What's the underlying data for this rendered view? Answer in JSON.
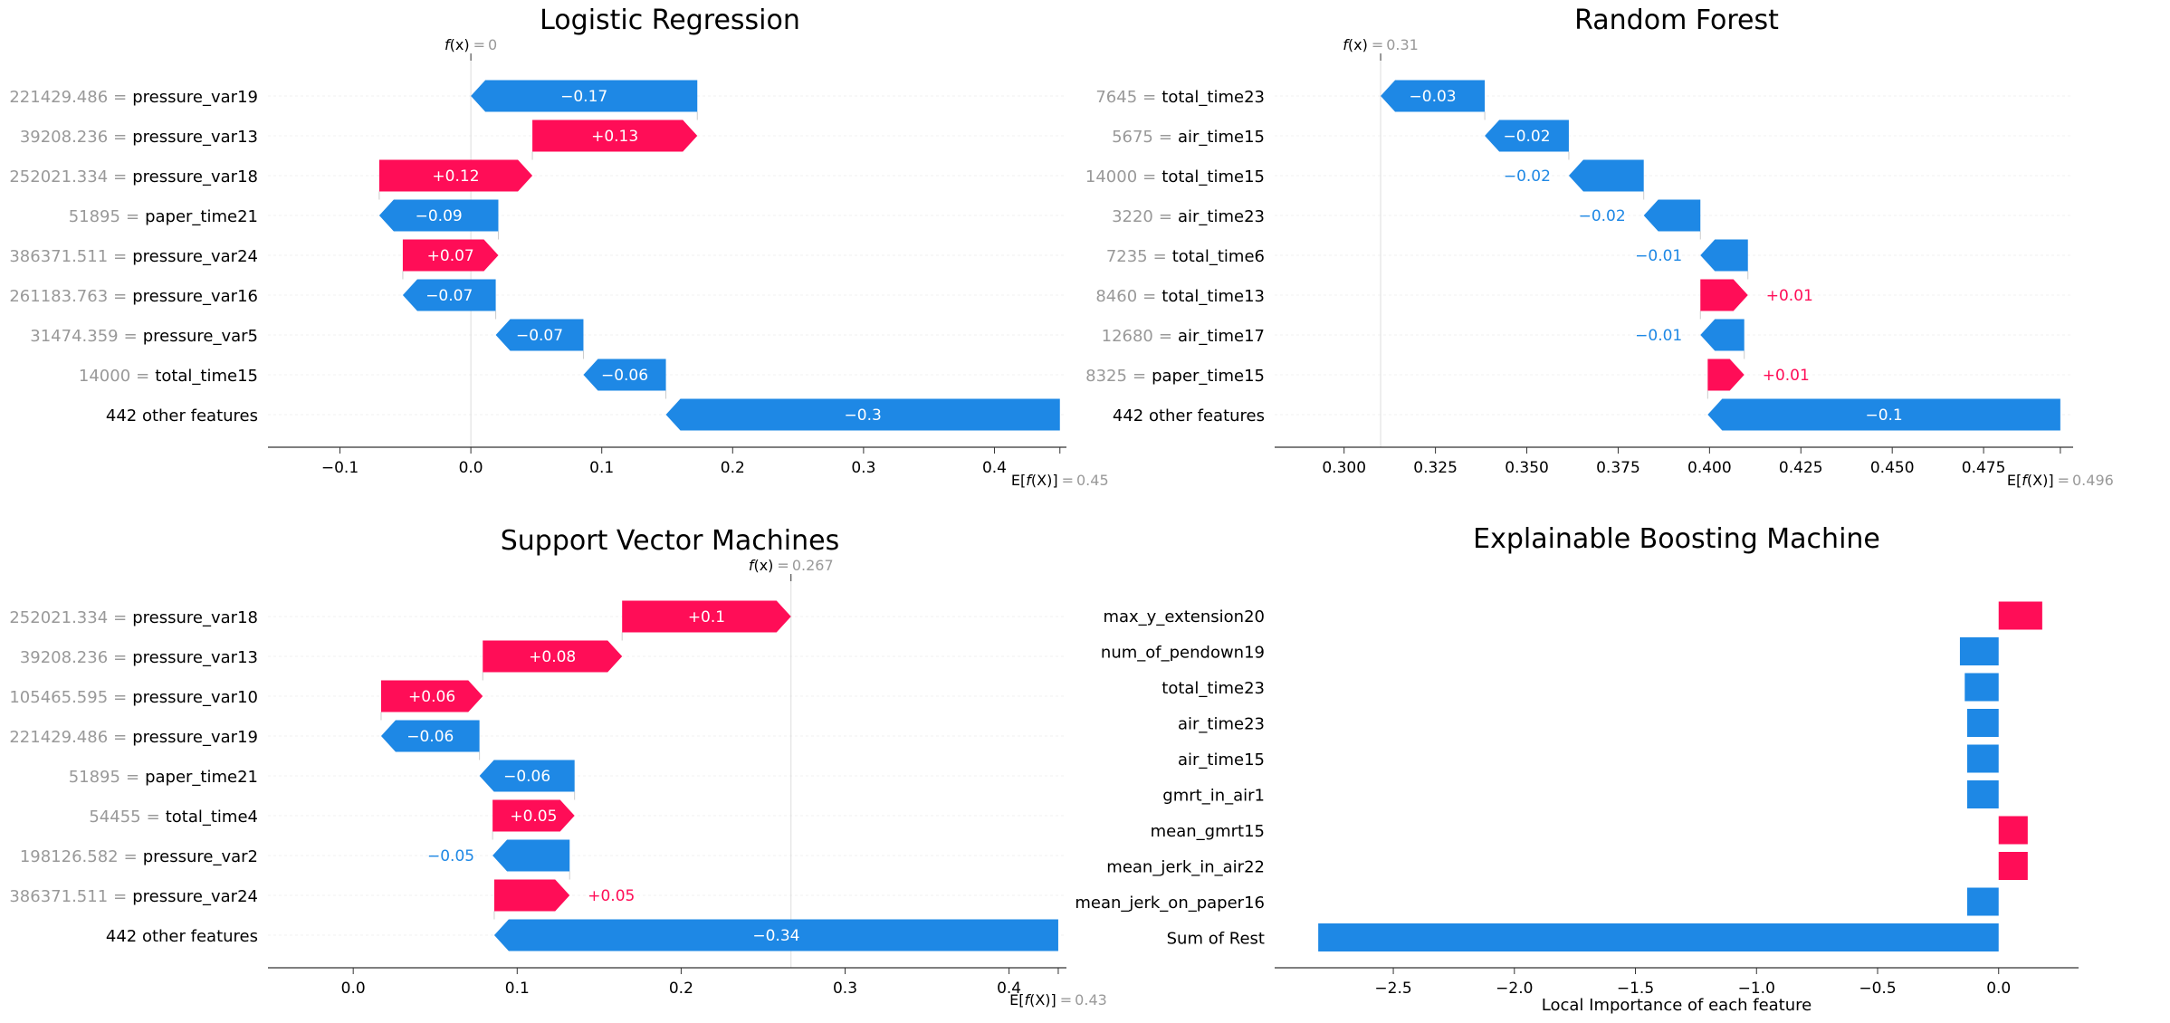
{
  "colors": {
    "positive": "#ff0d57",
    "negative": "#1e88e5",
    "neg_text": "#1e88e5",
    "pos_text": "#ff0d57",
    "muted": "#999999",
    "grid": "#e6e6e6"
  },
  "chart_data": [
    {
      "type": "waterfall",
      "title": "Logistic Regression",
      "fx": "0",
      "efx": "0.45",
      "xlim": [
        -0.155,
        0.455
      ],
      "ticks": [
        -0.1,
        0.0,
        0.1,
        0.2,
        0.3,
        0.4
      ],
      "tick_labels": [
        "−0.1",
        "0.0",
        "0.1",
        "0.2",
        "0.3",
        "0.4"
      ],
      "features": [
        {
          "value": "221429.486",
          "name": "pressure_var19",
          "start": 0.173,
          "end": 0.0,
          "label": "−0.17"
        },
        {
          "value": "39208.236",
          "name": "pressure_var13",
          "start": 0.047,
          "end": 0.173,
          "label": "+0.13"
        },
        {
          "value": "252021.334",
          "name": "pressure_var18",
          "start": -0.07,
          "end": 0.047,
          "label": "+0.12"
        },
        {
          "value": "51895",
          "name": "paper_time21",
          "start": 0.021,
          "end": -0.07,
          "label": "−0.09"
        },
        {
          "value": "386371.511",
          "name": "pressure_var24",
          "start": -0.052,
          "end": 0.021,
          "label": "+0.07"
        },
        {
          "value": "261183.763",
          "name": "pressure_var16",
          "start": 0.019,
          "end": -0.052,
          "label": "−0.07"
        },
        {
          "value": "31474.359",
          "name": "pressure_var5",
          "start": 0.086,
          "end": 0.019,
          "label": "−0.07"
        },
        {
          "value": "14000",
          "name": "total_time15",
          "start": 0.149,
          "end": 0.086,
          "label": "−0.06"
        },
        {
          "value": "",
          "name": "442 other features",
          "start": 0.45,
          "end": 0.149,
          "label": "−0.3"
        }
      ]
    },
    {
      "type": "waterfall",
      "title": "Random Forest",
      "fx": "0.31",
      "efx": "0.496",
      "xlim": [
        0.281,
        0.4995
      ],
      "ticks": [
        0.3,
        0.325,
        0.35,
        0.375,
        0.4,
        0.425,
        0.45,
        0.475
      ],
      "tick_labels": [
        "0.300",
        "0.325",
        "0.350",
        "0.375",
        "0.400",
        "0.425",
        "0.450",
        "0.475"
      ],
      "features": [
        {
          "value": "7645",
          "name": "total_time23",
          "start": 0.3385,
          "end": 0.31,
          "label": "−0.03"
        },
        {
          "value": "5675",
          "name": "air_time15",
          "start": 0.3615,
          "end": 0.3385,
          "label": "−0.02"
        },
        {
          "value": "14000",
          "name": "total_time15",
          "start": 0.382,
          "end": 0.3615,
          "label": "−0.02"
        },
        {
          "value": "3220",
          "name": "air_time23",
          "start": 0.3975,
          "end": 0.382,
          "label": "−0.02"
        },
        {
          "value": "7235",
          "name": "total_time6",
          "start": 0.4105,
          "end": 0.3975,
          "label": "−0.01"
        },
        {
          "value": "8460",
          "name": "total_time13",
          "start": 0.3975,
          "end": 0.4105,
          "label": "+0.01"
        },
        {
          "value": "12680",
          "name": "air_time17",
          "start": 0.4095,
          "end": 0.3975,
          "label": "−0.01"
        },
        {
          "value": "8325",
          "name": "paper_time15",
          "start": 0.3995,
          "end": 0.4095,
          "label": "+0.01"
        },
        {
          "value": "",
          "name": "442 other features",
          "start": 0.496,
          "end": 0.3995,
          "label": "−0.1"
        }
      ]
    },
    {
      "type": "waterfall",
      "title": "Support Vector Machines",
      "fx": "0.267",
      "efx": "0.43",
      "xlim": [
        -0.052,
        0.435
      ],
      "ticks": [
        0.0,
        0.1,
        0.2,
        0.3,
        0.4
      ],
      "tick_labels": [
        "0.0",
        "0.1",
        "0.2",
        "0.3",
        "0.4"
      ],
      "features": [
        {
          "value": "252021.334",
          "name": "pressure_var18",
          "start": 0.164,
          "end": 0.267,
          "label": "+0.1"
        },
        {
          "value": "39208.236",
          "name": "pressure_var13",
          "start": 0.079,
          "end": 0.164,
          "label": "+0.08"
        },
        {
          "value": "105465.595",
          "name": "pressure_var10",
          "start": 0.017,
          "end": 0.079,
          "label": "+0.06"
        },
        {
          "value": "221429.486",
          "name": "pressure_var19",
          "start": 0.077,
          "end": 0.017,
          "label": "−0.06"
        },
        {
          "value": "51895",
          "name": "paper_time21",
          "start": 0.135,
          "end": 0.077,
          "label": "−0.06"
        },
        {
          "value": "54455",
          "name": "total_time4",
          "start": 0.085,
          "end": 0.135,
          "label": "+0.05"
        },
        {
          "value": "198126.582",
          "name": "pressure_var2",
          "start": 0.132,
          "end": 0.085,
          "label": "−0.05"
        },
        {
          "value": "386371.511",
          "name": "pressure_var24",
          "start": 0.086,
          "end": 0.132,
          "label": "+0.05"
        },
        {
          "value": "",
          "name": "442 other features",
          "start": 0.43,
          "end": 0.086,
          "label": "−0.34"
        }
      ]
    },
    {
      "type": "bar",
      "orientation": "horizontal",
      "title": "Explainable Boosting Machine",
      "xlabel": "Local Importance of each feature",
      "xlim": [
        -2.99,
        0.33
      ],
      "ticks": [
        -2.5,
        -2.0,
        -1.5,
        -1.0,
        -0.5,
        0.0
      ],
      "tick_labels": [
        "−2.5",
        "−2.0",
        "−1.5",
        "−1.0",
        "−0.5",
        "0.0"
      ],
      "categories": [
        "max_y_extension20",
        "num_of_pendown19",
        "total_time23",
        "air_time23",
        "air_time15",
        "gmrt_in_air1",
        "mean_gmrt15",
        "mean_jerk_in_air22",
        "mean_jerk_on_paper16",
        "Sum of Rest"
      ],
      "values": [
        0.18,
        -0.16,
        -0.14,
        -0.13,
        -0.13,
        -0.13,
        0.12,
        0.12,
        -0.13,
        -2.81
      ]
    }
  ]
}
